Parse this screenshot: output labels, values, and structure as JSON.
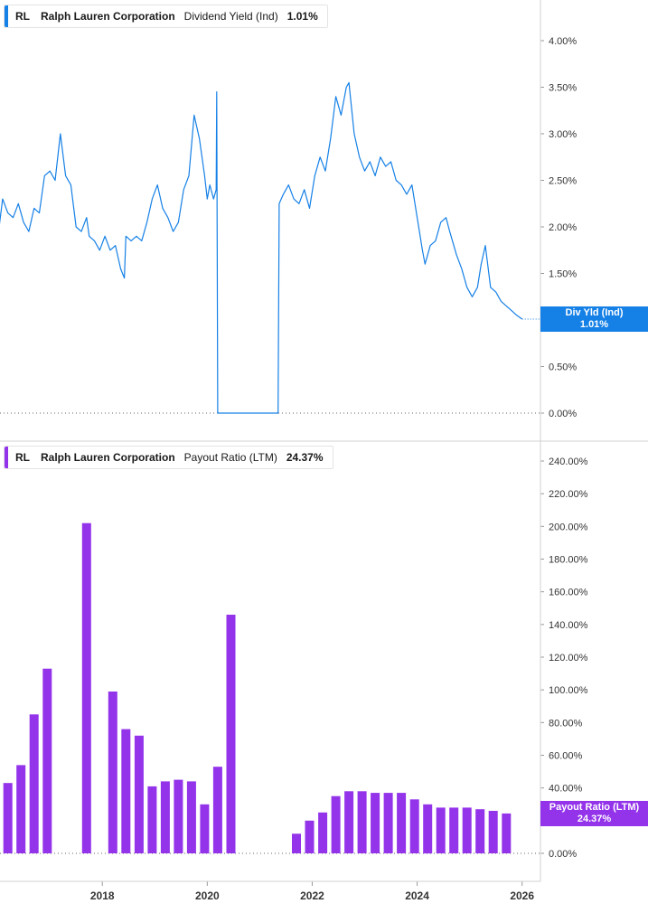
{
  "panels": {
    "top": {
      "ticker": "RL",
      "company": "Ralph Lauren Corporation",
      "metric": "Dividend Yield (Ind)",
      "value": "1.01%",
      "tag_name": "Div Yld (Ind)",
      "tag_value": "1.01%",
      "color": "#1580e6"
    },
    "bottom": {
      "ticker": "RL",
      "company": "Ralph Lauren Corporation",
      "metric": "Payout Ratio (LTM)",
      "value": "24.37%",
      "tag_name": "Payout Ratio (LTM)",
      "tag_value": "24.37%",
      "color": "#9333ea"
    }
  },
  "chart_data": [
    {
      "type": "line",
      "series": [
        {
          "name": "Div Yld (Ind)"
        }
      ],
      "x_range": [
        2016.05,
        2026.35
      ],
      "ylim": [
        0,
        4.4
      ],
      "y_ticks": [
        "0.00%",
        "0.50%",
        "1.00%",
        "1.50%",
        "2.00%",
        "2.50%",
        "3.00%",
        "3.50%",
        "4.00%"
      ],
      "grid": false,
      "x": [
        2016.0,
        2016.1,
        2016.2,
        2016.3,
        2016.4,
        2016.5,
        2016.6,
        2016.7,
        2016.8,
        2016.9,
        2017.0,
        2017.1,
        2017.2,
        2017.3,
        2017.4,
        2017.5,
        2017.6,
        2017.7,
        2017.75,
        2017.85,
        2017.95,
        2018.05,
        2018.15,
        2018.25,
        2018.35,
        2018.42,
        2018.45,
        2018.55,
        2018.65,
        2018.75,
        2018.85,
        2018.95,
        2019.05,
        2019.15,
        2019.25,
        2019.35,
        2019.45,
        2019.55,
        2019.65,
        2019.75,
        2019.85,
        2019.95,
        2020.0,
        2020.05,
        2020.12,
        2020.17,
        2020.18,
        2020.2,
        2021.35,
        2021.37,
        2021.45,
        2021.55,
        2021.65,
        2021.75,
        2021.85,
        2021.95,
        2022.05,
        2022.15,
        2022.25,
        2022.35,
        2022.45,
        2022.55,
        2022.65,
        2022.7,
        2022.8,
        2022.9,
        2023.0,
        2023.1,
        2023.2,
        2023.3,
        2023.4,
        2023.5,
        2023.6,
        2023.7,
        2023.8,
        2023.9,
        2024.0,
        2024.1,
        2024.15,
        2024.25,
        2024.35,
        2024.45,
        2024.55,
        2024.62,
        2024.75,
        2024.85,
        2024.95,
        2025.05,
        2025.15,
        2025.22,
        2025.3,
        2025.4,
        2025.5,
        2025.6,
        2025.7,
        2025.8,
        2025.9,
        2026.0
      ],
      "values": [
        1.85,
        2.3,
        2.15,
        2.1,
        2.25,
        2.05,
        1.95,
        2.2,
        2.15,
        2.55,
        2.6,
        2.5,
        3.0,
        2.55,
        2.45,
        2.0,
        1.95,
        2.1,
        1.9,
        1.85,
        1.75,
        1.9,
        1.75,
        1.8,
        1.55,
        1.45,
        1.9,
        1.85,
        1.9,
        1.85,
        2.05,
        2.3,
        2.45,
        2.2,
        2.1,
        1.95,
        2.05,
        2.4,
        2.55,
        3.2,
        2.95,
        2.55,
        2.3,
        2.45,
        2.3,
        2.4,
        3.45,
        0.0,
        0.0,
        2.25,
        2.35,
        2.45,
        2.3,
        2.25,
        2.4,
        2.2,
        2.55,
        2.75,
        2.6,
        2.95,
        3.4,
        3.2,
        3.5,
        3.55,
        3.0,
        2.75,
        2.6,
        2.7,
        2.55,
        2.75,
        2.65,
        2.7,
        2.5,
        2.45,
        2.35,
        2.45,
        2.1,
        1.75,
        1.6,
        1.8,
        1.85,
        2.05,
        2.1,
        1.95,
        1.7,
        1.55,
        1.35,
        1.25,
        1.35,
        1.6,
        1.8,
        1.35,
        1.3,
        1.2,
        1.15,
        1.1,
        1.05,
        1.01
      ]
    },
    {
      "type": "bar",
      "series": [
        {
          "name": "Payout Ratio (LTM)"
        }
      ],
      "x_range": [
        2016.05,
        2026.35
      ],
      "ylim": [
        0,
        250
      ],
      "y_ticks": [
        "0.00%",
        "20.00%",
        "40.00%",
        "60.00%",
        "80.00%",
        "100.00%",
        "120.00%",
        "140.00%",
        "160.00%",
        "180.00%",
        "200.00%",
        "220.00%",
        "240.00%"
      ],
      "x_labels": [
        "2018",
        "2020",
        "2022",
        "2024",
        "2026"
      ],
      "x_label_positions": [
        2018.0,
        2020.0,
        2022.0,
        2024.0,
        2026.0
      ],
      "grid": false,
      "x": [
        2016.2,
        2016.45,
        2016.7,
        2016.95,
        2017.7,
        2018.2,
        2018.45,
        2018.7,
        2018.95,
        2019.2,
        2019.45,
        2019.7,
        2019.95,
        2020.2,
        2020.45,
        2021.7,
        2021.95,
        2022.2,
        2022.45,
        2022.7,
        2022.95,
        2023.2,
        2023.45,
        2023.7,
        2023.95,
        2024.2,
        2024.45,
        2024.7,
        2024.95,
        2025.2,
        2025.45,
        2025.7
      ],
      "values": [
        43,
        54,
        85,
        113,
        202,
        99,
        76,
        72,
        41,
        44,
        45,
        44,
        30,
        53,
        146,
        12,
        20,
        25,
        35,
        38,
        38,
        37,
        37,
        37,
        33,
        30,
        28,
        28,
        28,
        27,
        26,
        24.37
      ]
    }
  ]
}
